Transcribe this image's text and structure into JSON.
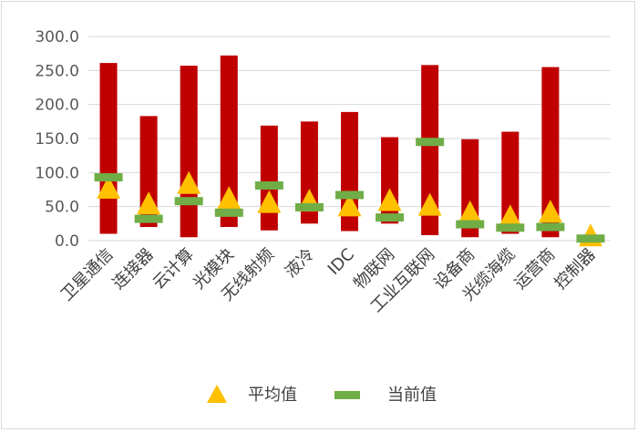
{
  "chart_data": {
    "type": "bar",
    "subtype": "floating range bars with average (triangle) and current (dash) markers",
    "title": "",
    "xlabel": "",
    "ylabel": "",
    "ylim": [
      0,
      300
    ],
    "yticks": [
      "0.0",
      "50.0",
      "100.0",
      "150.0",
      "200.0",
      "250.0",
      "300.0"
    ],
    "grid": true,
    "legend_position": "bottom",
    "categories": [
      "卫星通信",
      "连接器",
      "云计算",
      "光模块",
      "无线射频",
      "液冷",
      "IDC",
      "物联网",
      "工业互联网",
      "设备商",
      "光缆海缆",
      "运营商",
      "控制器"
    ],
    "range_low": [
      10,
      20,
      5,
      20,
      15,
      25,
      14,
      25,
      8,
      5,
      10,
      5,
      3
    ],
    "range_high": [
      261,
      183,
      257,
      272,
      169,
      175,
      189,
      152,
      258,
      149,
      160,
      255,
      4
    ],
    "series": [
      {
        "name": "平均值",
        "marker": "triangle",
        "color": "#ffc000",
        "values": [
          75,
          52,
          82,
          60,
          54,
          56,
          49,
          57,
          50,
          39,
          33,
          40,
          5
        ]
      },
      {
        "name": "当前值",
        "marker": "dash",
        "color": "#70ad47",
        "values": [
          93,
          32,
          58,
          41,
          81,
          49,
          67,
          34,
          145,
          24,
          19,
          20,
          3
        ]
      }
    ],
    "colors": {
      "range_bar": "#c00000",
      "average": "#ffc000",
      "current": "#70ad47",
      "grid": "#d9d9d9"
    }
  }
}
